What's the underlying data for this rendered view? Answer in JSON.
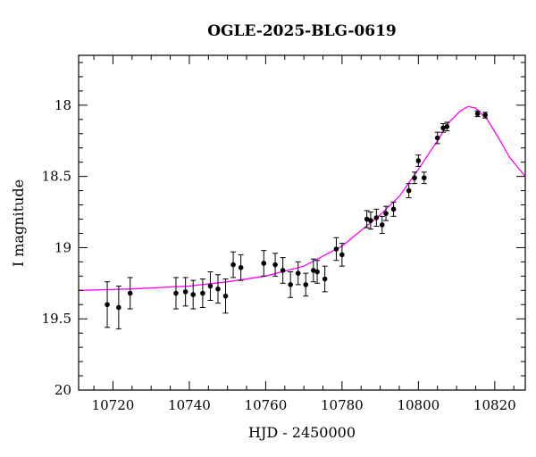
{
  "chart_data": {
    "type": "scatter",
    "title": "OGLE-2025-BLG-0619",
    "xlabel": "HJD - 2450000",
    "ylabel": "I magnitude",
    "xlim": [
      10711,
      10828
    ],
    "ylim": [
      20,
      17.65
    ],
    "y_inverted": true,
    "x_ticks": [
      10720,
      10740,
      10760,
      10780,
      10800,
      10820
    ],
    "y_ticks": [
      18,
      18.5,
      19,
      19.5,
      20
    ],
    "x_tick_labels": [
      "10720",
      "10740",
      "10760",
      "10780",
      "10800",
      "10820"
    ],
    "y_tick_labels": [
      "18",
      "18.5",
      "19",
      "19.5",
      "20"
    ],
    "grid": false,
    "colors": {
      "model": "#ff00ff",
      "points": "#000000"
    },
    "series": [
      {
        "type": "scatter_errorbar",
        "points": [
          {
            "x": 10718.5,
            "y": 19.4,
            "err": 0.16
          },
          {
            "x": 10721.5,
            "y": 19.42,
            "err": 0.15
          },
          {
            "x": 10724.5,
            "y": 19.32,
            "err": 0.11
          },
          {
            "x": 10736.5,
            "y": 19.32,
            "err": 0.11
          },
          {
            "x": 10739.0,
            "y": 19.31,
            "err": 0.1
          },
          {
            "x": 10741.0,
            "y": 19.33,
            "err": 0.1
          },
          {
            "x": 10743.5,
            "y": 19.32,
            "err": 0.1
          },
          {
            "x": 10745.5,
            "y": 19.27,
            "err": 0.1
          },
          {
            "x": 10747.5,
            "y": 19.29,
            "err": 0.1
          },
          {
            "x": 10749.5,
            "y": 19.34,
            "err": 0.12
          },
          {
            "x": 10751.5,
            "y": 19.12,
            "err": 0.09
          },
          {
            "x": 10753.5,
            "y": 19.14,
            "err": 0.09
          },
          {
            "x": 10759.5,
            "y": 19.11,
            "err": 0.09
          },
          {
            "x": 10762.5,
            "y": 19.12,
            "err": 0.08
          },
          {
            "x": 10764.5,
            "y": 19.16,
            "err": 0.09
          },
          {
            "x": 10766.5,
            "y": 19.26,
            "err": 0.09
          },
          {
            "x": 10768.5,
            "y": 19.18,
            "err": 0.08
          },
          {
            "x": 10770.5,
            "y": 19.26,
            "err": 0.08
          },
          {
            "x": 10772.5,
            "y": 19.16,
            "err": 0.08
          },
          {
            "x": 10773.5,
            "y": 19.17,
            "err": 0.08
          },
          {
            "x": 10775.5,
            "y": 19.22,
            "err": 0.09
          },
          {
            "x": 10778.5,
            "y": 19.01,
            "err": 0.08
          },
          {
            "x": 10780.0,
            "y": 19.05,
            "err": 0.08
          },
          {
            "x": 10786.5,
            "y": 18.8,
            "err": 0.06
          },
          {
            "x": 10787.5,
            "y": 18.81,
            "err": 0.06
          },
          {
            "x": 10789.0,
            "y": 18.79,
            "err": 0.06
          },
          {
            "x": 10790.5,
            "y": 18.84,
            "err": 0.06
          },
          {
            "x": 10791.5,
            "y": 18.76,
            "err": 0.05
          },
          {
            "x": 10793.5,
            "y": 18.73,
            "err": 0.05
          },
          {
            "x": 10797.5,
            "y": 18.6,
            "err": 0.05
          },
          {
            "x": 10799.0,
            "y": 18.51,
            "err": 0.04
          },
          {
            "x": 10800.0,
            "y": 18.39,
            "err": 0.04
          },
          {
            "x": 10801.5,
            "y": 18.51,
            "err": 0.04
          },
          {
            "x": 10805.0,
            "y": 18.23,
            "err": 0.04
          },
          {
            "x": 10806.5,
            "y": 18.16,
            "err": 0.03
          },
          {
            "x": 10807.5,
            "y": 18.15,
            "err": 0.03
          },
          {
            "x": 10815.5,
            "y": 18.06,
            "err": 0.02
          },
          {
            "x": 10817.5,
            "y": 18.07,
            "err": 0.02
          }
        ]
      },
      {
        "type": "model_line",
        "points": [
          {
            "x": 10711,
            "y": 19.3
          },
          {
            "x": 10725,
            "y": 19.29
          },
          {
            "x": 10740,
            "y": 19.27
          },
          {
            "x": 10750,
            "y": 19.24
          },
          {
            "x": 10760,
            "y": 19.2
          },
          {
            "x": 10770,
            "y": 19.13
          },
          {
            "x": 10780,
            "y": 18.99
          },
          {
            "x": 10785,
            "y": 18.88
          },
          {
            "x": 10790,
            "y": 18.77
          },
          {
            "x": 10795,
            "y": 18.64
          },
          {
            "x": 10800,
            "y": 18.45
          },
          {
            "x": 10805,
            "y": 18.25
          },
          {
            "x": 10808,
            "y": 18.12
          },
          {
            "x": 10811,
            "y": 18.04
          },
          {
            "x": 10813,
            "y": 18.01
          },
          {
            "x": 10815,
            "y": 18.02
          },
          {
            "x": 10818,
            "y": 18.1
          },
          {
            "x": 10821,
            "y": 18.23
          },
          {
            "x": 10824,
            "y": 18.37
          },
          {
            "x": 10828,
            "y": 18.5
          }
        ]
      }
    ]
  }
}
